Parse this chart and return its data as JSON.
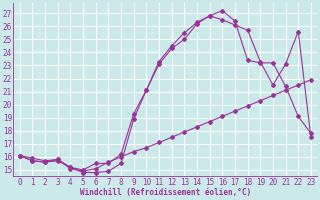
{
  "xlabel": "Windchill (Refroidissement éolien,°C)",
  "bg_color": "#cce9e9",
  "grid_color": "#ffffff",
  "line_color": "#993399",
  "xlim": [
    -0.5,
    23.5
  ],
  "ylim": [
    14.5,
    27.8
  ],
  "yticks": [
    15,
    16,
    17,
    18,
    19,
    20,
    21,
    22,
    23,
    24,
    25,
    26,
    27
  ],
  "xticks": [
    0,
    1,
    2,
    3,
    4,
    5,
    6,
    7,
    8,
    9,
    10,
    11,
    12,
    13,
    14,
    15,
    16,
    17,
    18,
    19,
    20,
    21,
    22,
    23
  ],
  "line1_x": [
    0,
    1,
    2,
    3,
    4,
    5,
    6,
    7,
    8,
    9,
    10,
    11,
    12,
    13,
    14,
    15,
    16,
    17,
    18,
    19,
    20,
    21,
    22,
    23
  ],
  "line1_y": [
    16.1,
    15.9,
    15.7,
    15.8,
    15.1,
    14.9,
    15.1,
    15.6,
    16.0,
    16.4,
    16.7,
    17.1,
    17.5,
    17.9,
    18.3,
    18.7,
    19.1,
    19.5,
    19.9,
    20.3,
    20.7,
    21.1,
    21.5,
    21.9
  ],
  "line2_x": [
    0,
    1,
    2,
    3,
    4,
    5,
    6,
    7,
    8,
    9,
    10,
    11,
    12,
    13,
    14,
    15,
    16,
    17,
    18,
    19,
    20,
    21,
    22,
    23
  ],
  "line2_y": [
    16.1,
    15.7,
    15.6,
    15.7,
    15.2,
    14.8,
    14.8,
    14.9,
    15.5,
    18.9,
    21.1,
    23.1,
    24.3,
    25.0,
    26.2,
    26.8,
    27.2,
    26.4,
    23.4,
    23.2,
    23.2,
    21.4,
    19.1,
    17.8
  ],
  "line3_x": [
    0,
    1,
    2,
    3,
    4,
    5,
    6,
    7,
    8,
    9,
    10,
    11,
    12,
    13,
    14,
    15,
    16,
    17,
    18,
    19,
    20,
    21,
    22,
    23
  ],
  "line3_y": [
    16.1,
    15.7,
    15.6,
    15.8,
    15.2,
    15.0,
    15.5,
    15.5,
    16.2,
    19.3,
    21.1,
    23.3,
    24.5,
    25.5,
    26.3,
    26.8,
    26.5,
    26.1,
    25.7,
    23.3,
    21.5,
    23.1,
    25.6,
    17.5
  ],
  "marker": "D",
  "marker_size": 2.0,
  "line_width": 0.8,
  "tick_fontsize": 5.5,
  "xlabel_fontsize": 5.5
}
